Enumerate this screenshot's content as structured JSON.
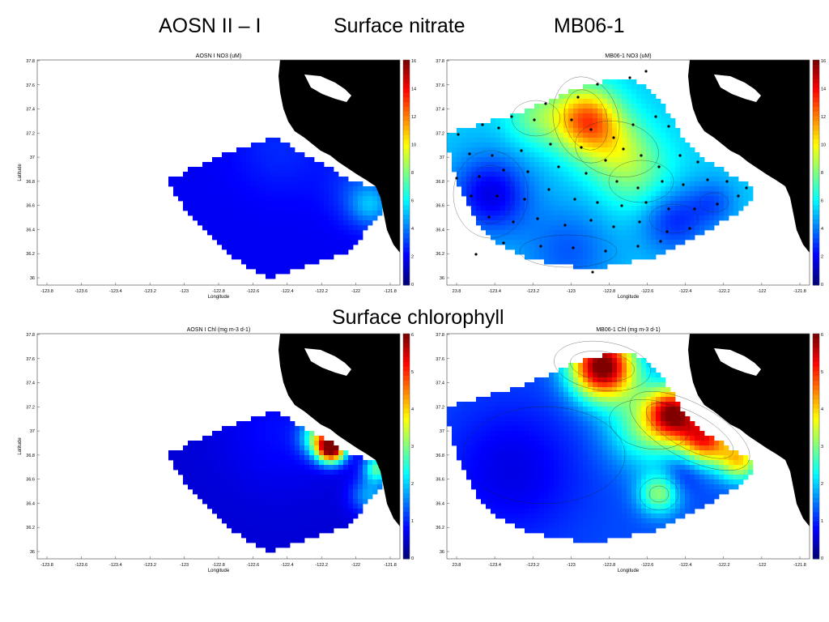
{
  "slide": {
    "header_left": "AOSN II – I",
    "header_center": "Surface nitrate",
    "header_right": "MB06-1",
    "mid_header": "Surface chlorophyll"
  },
  "colors": {
    "land": "#000000",
    "low": "#00008f",
    "high": "#800000",
    "colormap": "jet"
  },
  "axes": {
    "latitude_label": "Latitude",
    "longitude_label": "Longitude",
    "lat_ticks": [
      "37.8",
      "37.6",
      "37.4",
      "37.2",
      "37",
      "36.8",
      "36.6",
      "36.4",
      "36.2",
      "36"
    ],
    "lon_ticks_aosn": [
      "-123.8",
      "-123.6",
      "-123.4",
      "-123.2",
      "-123",
      "-122.8",
      "-122.6",
      "-122.4",
      "-122.2",
      "-122",
      "-121.8"
    ],
    "lon_ticks_mb": [
      "23.8",
      "-123.4",
      "-123.2",
      "-123",
      "-122.8",
      "-122.6",
      "-122.4",
      "-122.2",
      "-122",
      "-121.8"
    ]
  },
  "chart_data": [
    {
      "type": "heatmap",
      "title": "AOSN I NO3 (uM)",
      "xlabel": "Longitude",
      "ylabel": "Latitude",
      "xlim": [
        -123.9,
        -121.7
      ],
      "ylim": [
        35.95,
        37.8
      ],
      "colorbar_ticks": [
        "16",
        "14",
        "12",
        "10",
        "8",
        "6",
        "4",
        "2",
        "0"
      ],
      "colorbar_range": [
        0,
        16
      ]
    },
    {
      "type": "heatmap",
      "title": "MB06-1 NO3 (uM)",
      "xlabel": "Longitude",
      "ylabel": "",
      "xlim": [
        -123.6,
        -121.7
      ],
      "ylim": [
        35.95,
        37.8
      ],
      "colorbar_ticks": [
        "16",
        "14",
        "12",
        "10",
        "8",
        "6",
        "4",
        "2",
        "0"
      ],
      "colorbar_range": [
        0,
        16
      ]
    },
    {
      "type": "heatmap",
      "title": "AOSN I Chl (mg m-3 d-1)",
      "xlabel": "Longitude",
      "ylabel": "Latitude",
      "xlim": [
        -123.9,
        -121.7
      ],
      "ylim": [
        35.95,
        37.8
      ],
      "colorbar_ticks": [
        "6",
        "5",
        "4",
        "3",
        "2",
        "1",
        "0"
      ],
      "colorbar_range": [
        0,
        6
      ]
    },
    {
      "type": "heatmap",
      "title": "MB06-1 Chl (mg m-3 d-1)",
      "xlabel": "Longitude",
      "ylabel": "",
      "xlim": [
        -123.6,
        -121.7
      ],
      "ylim": [
        35.95,
        37.8
      ],
      "colorbar_ticks": [
        "6",
        "5",
        "4",
        "3",
        "2",
        "1",
        "0"
      ],
      "colorbar_range": [
        0,
        6
      ]
    }
  ]
}
